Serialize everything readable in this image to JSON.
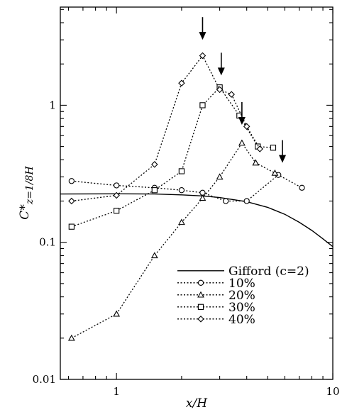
{
  "chart_data": {
    "type": "line",
    "title": "",
    "xlabel": "x/H",
    "ylabel_main": "C*",
    "ylabel_sub": "z=1/8H",
    "x_scale": "log",
    "y_scale": "log",
    "xlim": [
      0.55,
      10
    ],
    "ylim": [
      0.01,
      5.2
    ],
    "x_ticks": [
      {
        "v": 1,
        "label": "1"
      },
      {
        "v": 10,
        "label": "10"
      }
    ],
    "y_ticks": [
      {
        "v": 0.01,
        "label": "0.01"
      },
      {
        "v": 0.1,
        "label": "0.1"
      },
      {
        "v": 1,
        "label": "1"
      }
    ],
    "legend_position": "bottom-right",
    "series": [
      {
        "name": "Gifford (c=2)",
        "style": "solid",
        "marker": "none",
        "x": [
          0.55,
          1.0,
          1.5,
          2.0,
          2.5,
          3.0,
          4.0,
          5.0,
          6.0,
          7.0,
          8.0,
          9.0,
          10.0
        ],
        "values": [
          0.225,
          0.226,
          0.225,
          0.222,
          0.218,
          0.212,
          0.198,
          0.18,
          0.16,
          0.14,
          0.122,
          0.106,
          0.093
        ]
      },
      {
        "name": "10%",
        "style": "dotted",
        "marker": "circle",
        "x": [
          0.62,
          1.0,
          1.5,
          2.0,
          2.5,
          3.2,
          4.0,
          5.6,
          7.2
        ],
        "values": [
          0.28,
          0.26,
          0.25,
          0.24,
          0.23,
          0.2,
          0.2,
          0.31,
          0.25
        ]
      },
      {
        "name": "20%",
        "style": "dotted",
        "marker": "triangle",
        "x": [
          0.62,
          1.0,
          1.5,
          2.0,
          2.5,
          3.0,
          3.8,
          4.4,
          5.4
        ],
        "values": [
          0.02,
          0.03,
          0.08,
          0.14,
          0.21,
          0.3,
          0.53,
          0.38,
          0.32
        ]
      },
      {
        "name": "30%",
        "style": "dotted",
        "marker": "square",
        "x": [
          0.62,
          1.0,
          1.5,
          2.0,
          2.5,
          3.0,
          3.7,
          4.5,
          5.3
        ],
        "values": [
          0.13,
          0.17,
          0.24,
          0.33,
          1.0,
          1.35,
          0.84,
          0.5,
          0.49
        ]
      },
      {
        "name": "40%",
        "style": "dotted",
        "marker": "diamond",
        "x": [
          0.62,
          1.0,
          1.5,
          2.0,
          2.5,
          3.0,
          3.4,
          4.0,
          4.6
        ],
        "values": [
          0.2,
          0.22,
          0.37,
          1.45,
          2.3,
          1.3,
          1.2,
          0.7,
          0.48
        ]
      }
    ],
    "arrows": [
      {
        "x": 2.5,
        "y": 3.0
      },
      {
        "x": 3.05,
        "y": 1.65
      },
      {
        "x": 3.8,
        "y": 0.72
      },
      {
        "x": 5.85,
        "y": 0.38
      }
    ]
  }
}
